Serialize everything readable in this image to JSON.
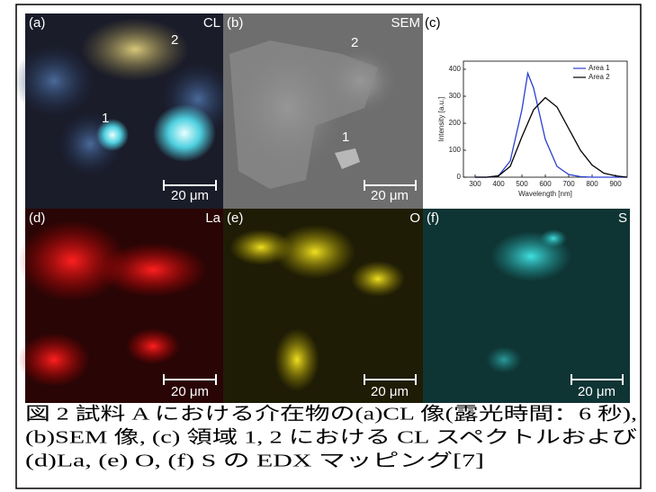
{
  "panels": [
    {
      "label": "(a)",
      "mode": "CL",
      "markers": [
        "2",
        "1"
      ],
      "scale_bar": "20 μm"
    },
    {
      "label": "(b)",
      "mode": "SEM",
      "markers": [
        "2",
        "1"
      ],
      "scale_bar": "20 μm"
    },
    {
      "label": "(c)",
      "chart": {
        "type": "line",
        "x": [
          300,
          350,
          400,
          450,
          500,
          525,
          550,
          600,
          650,
          700,
          750,
          800,
          850,
          900,
          950
        ],
        "series": [
          {
            "name": "Area 1",
            "color": "#2a3fd0",
            "values": [
              0,
              0,
              5,
              60,
              250,
              385,
              330,
              140,
              40,
              10,
              2,
              0,
              0,
              0,
              0
            ]
          },
          {
            "name": "Area 2",
            "color": "#000000",
            "values": [
              0,
              0,
              5,
              40,
              150,
              200,
              250,
              295,
              260,
              180,
              100,
              45,
              15,
              5,
              0
            ]
          }
        ],
        "xlim": [
          250,
          950
        ],
        "ylim": [
          0,
          430
        ],
        "xticks": [
          300,
          400,
          500,
          600,
          700,
          800,
          900
        ],
        "yticks": [
          0,
          100,
          200,
          300,
          400
        ],
        "xlabel": "Wavelength [nm]",
        "ylabel": "Intensity [a.u.]",
        "legend": "upper right"
      }
    },
    {
      "label": "(d)",
      "mode": "La",
      "scale_bar": "20 μm"
    },
    {
      "label": "(e)",
      "mode": "O",
      "scale_bar": "20 μm"
    },
    {
      "label": "(f)",
      "mode": "S",
      "scale_bar": "20 μm"
    }
  ],
  "caption": {
    "lines": [
      "図 2 試料 A における介在物の(a)CL 像(露光時間：6 秒),",
      "(b)SEM 像, (c) 領域 1, 2 における CL スペクトルおよび",
      "(d)La, (e) O, (f) S の EDX マッピング[7]"
    ]
  }
}
